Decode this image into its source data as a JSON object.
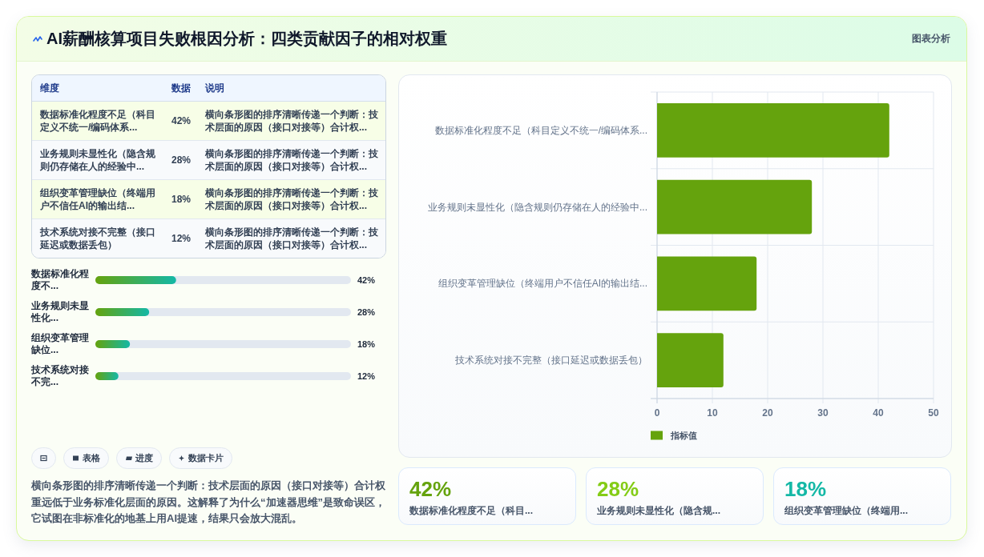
{
  "chart_data": [
    {
      "type": "other",
      "title": "AI薪酬核算项目失败根因分析：四类贡献因子的相对权重",
      "annotations": [
        "图表分析"
      ]
    },
    {
      "type": "other",
      "categories": [
        "数据标准化程度不足（科目定义不统一/编码体系...",
        "业务规则未显性化（隐含规则仍存储在人的经验中...",
        "组织变革管理缺位（终端用户不信任AI的输出结...",
        "技术系统对接不完整（接口延迟或数据丢包）"
      ],
      "values": [
        42,
        28,
        18,
        12
      ],
      "value_labels": [
        "42%",
        "28%",
        "18%",
        "12%"
      ],
      "annotations": [
        "维度",
        "数据",
        "说明",
        "横向条形图的排序清晰传递一个判断：技术层面的原因（接口对接等）合计权...",
        "横向条形图的排序清晰传递一个判断：技术层面的原因（接口对接等）合计权...",
        "横向条形图的排序清晰传递一个判断：技术层面的原因（接口对接等）合计权...",
        "横向条形图的排序清晰传递一个判断：技术层面的原因（接口对接等）合计权..."
      ]
    },
    {
      "type": "bar",
      "orientation": "horizontal",
      "categories": [
        "数据标准化程度不...",
        "业务规则未显性化...",
        "组织变革管理缺位...",
        "技术系统对接不完..."
      ],
      "values": [
        42,
        28,
        18,
        12
      ],
      "value_labels": [
        "42%",
        "28%",
        "18%",
        "12%"
      ],
      "color": "#65a30d",
      "xlim": [
        0,
        133
      ]
    },
    {
      "type": "other",
      "categories": [
        null,
        "表格",
        "进度",
        "数据卡片"
      ],
      "annotations": [
        "横向条形图的排序清晰传递一个判断：技术层面的原因（接口对接等）合计权重远低于业务标准化层面的原因。这解释了为什么“加速器思维”是致命误区，它试图在非标准化的地基上用AI提速，结果只会放大混乱。"
      ]
    },
    {
      "type": "bar",
      "orientation": "horizontal",
      "categories": [
        "数据标准化程度不足（科目定义不统一/编码体系...",
        "业务规则未显性化（隐含规则仍存储在人的经验中...",
        "组织变革管理缺位（终端用户不信任AI的输出结...",
        "技术系统对接不完整（接口延迟或数据丢包）"
      ],
      "series": [
        {
          "name": "指标值",
          "color": "#65a30d",
          "values": [
            42,
            28,
            18,
            12
          ]
        }
      ],
      "xlim": [
        0,
        50
      ],
      "xticks": [
        0,
        10,
        20,
        30,
        40,
        50
      ],
      "grid": true,
      "legend": "bottom left"
    },
    {
      "type": "other",
      "categories": [
        "数据标准化程度不足（科目...",
        "业务规则未显性化（隐含规...",
        "组织变革管理缺位（终端用..."
      ],
      "values": [
        42,
        28,
        18
      ],
      "value_labels": [
        "42%",
        "28%",
        "18%"
      ]
    }
  ]
}
